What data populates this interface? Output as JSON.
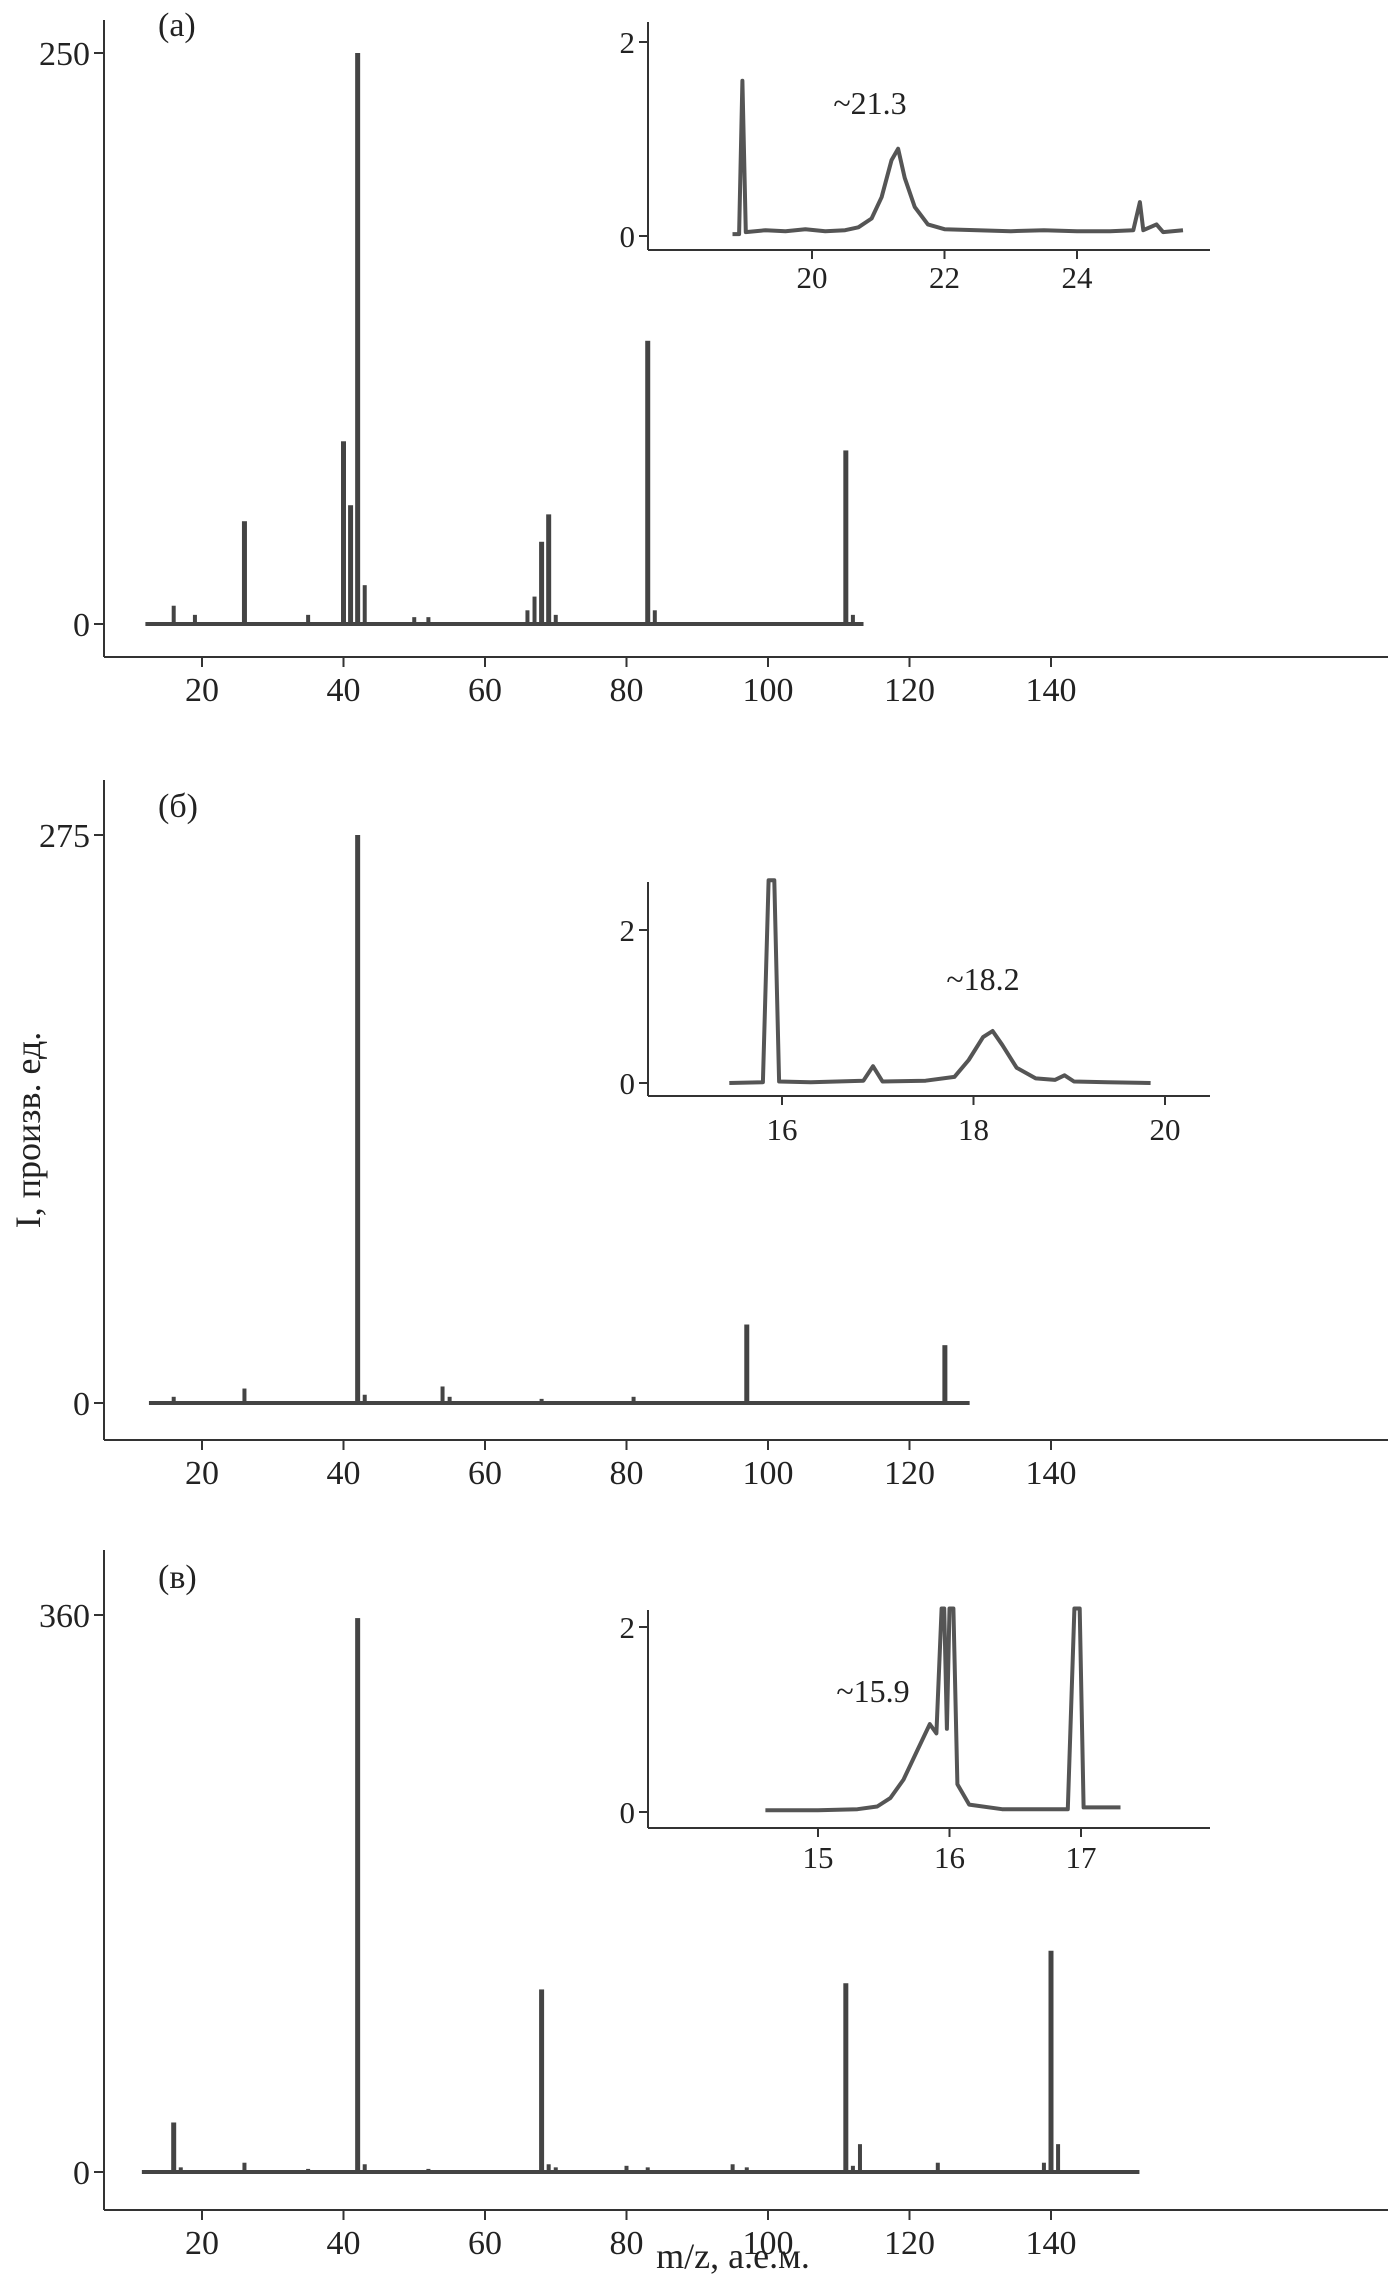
{
  "chart_data": {
    "type": "line",
    "xlabel": "m/z, а.е.м.",
    "ylabel": "I, произв. ед.",
    "panels": [
      {
        "label": "(а)",
        "x_range": [
          10,
          155
        ],
        "y_range": [
          0,
          250
        ],
        "x_ticks": [
          "20",
          "40",
          "60",
          "80",
          "100",
          "120",
          "140"
        ],
        "y_ticks": [
          "0",
          "250"
        ],
        "trace_x_range": [
          12.0,
          113.5
        ],
        "peaks": [
          {
            "mz": 16,
            "value": 8
          },
          {
            "mz": 19,
            "value": 4
          },
          {
            "mz": 26,
            "value": 45
          },
          {
            "mz": 35,
            "value": 4
          },
          {
            "mz": 40,
            "value": 80
          },
          {
            "mz": 41,
            "value": 52
          },
          {
            "mz": 42,
            "value": 250
          },
          {
            "mz": 43,
            "value": 17
          },
          {
            "mz": 50,
            "value": 3
          },
          {
            "mz": 52,
            "value": 3
          },
          {
            "mz": 66,
            "value": 6
          },
          {
            "mz": 67,
            "value": 12
          },
          {
            "mz": 68,
            "value": 36
          },
          {
            "mz": 69,
            "value": 48
          },
          {
            "mz": 70,
            "value": 4
          },
          {
            "mz": 83,
            "value": 124
          },
          {
            "mz": 84,
            "value": 6
          },
          {
            "mz": 111,
            "value": 76
          },
          {
            "mz": 112,
            "value": 4
          }
        ],
        "inset": {
          "x_range": [
            18.3,
            26.1
          ],
          "y_range": [
            -0.25,
            2.1
          ],
          "x_ticks": [
            "20",
            "22",
            "24"
          ],
          "y_ticks": [
            "0",
            "2"
          ],
          "annotation": "~21.3",
          "trace": [
            [
              18.8,
              0.02
            ],
            [
              18.9,
              0.02
            ],
            [
              18.95,
              1.6
            ],
            [
              19.0,
              0.04
            ],
            [
              19.3,
              0.06
            ],
            [
              19.6,
              0.05
            ],
            [
              19.9,
              0.07
            ],
            [
              20.2,
              0.05
            ],
            [
              20.5,
              0.06
            ],
            [
              20.7,
              0.09
            ],
            [
              20.9,
              0.18
            ],
            [
              21.05,
              0.4
            ],
            [
              21.2,
              0.78
            ],
            [
              21.3,
              0.9
            ],
            [
              21.4,
              0.6
            ],
            [
              21.55,
              0.3
            ],
            [
              21.75,
              0.12
            ],
            [
              22.0,
              0.07
            ],
            [
              22.5,
              0.06
            ],
            [
              23.0,
              0.05
            ],
            [
              23.5,
              0.06
            ],
            [
              24.0,
              0.05
            ],
            [
              24.5,
              0.05
            ],
            [
              24.85,
              0.06
            ],
            [
              24.95,
              0.35
            ],
            [
              25.0,
              0.06
            ],
            [
              25.2,
              0.12
            ],
            [
              25.3,
              0.04
            ],
            [
              25.6,
              0.06
            ]
          ]
        }
      },
      {
        "label": "(б)",
        "x_range": [
          10,
          155
        ],
        "y_range": [
          0,
          275
        ],
        "x_ticks": [
          "20",
          "40",
          "60",
          "80",
          "100",
          "120",
          "140"
        ],
        "y_ticks": [
          "0",
          "275"
        ],
        "trace_x_range": [
          12.5,
          128.5
        ],
        "peaks": [
          {
            "mz": 16,
            "value": 3
          },
          {
            "mz": 26,
            "value": 7
          },
          {
            "mz": 42,
            "value": 275
          },
          {
            "mz": 43,
            "value": 4
          },
          {
            "mz": 54,
            "value": 8
          },
          {
            "mz": 55,
            "value": 3
          },
          {
            "mz": 68,
            "value": 2
          },
          {
            "mz": 81,
            "value": 3
          },
          {
            "mz": 97,
            "value": 38
          },
          {
            "mz": 125,
            "value": 28
          }
        ],
        "inset": {
          "x_range": [
            15.3,
            20.5
          ],
          "y_range": [
            -0.3,
            2.65
          ],
          "x_ticks": [
            "16",
            "18",
            "20"
          ],
          "y_ticks": [
            "0",
            "2"
          ],
          "annotation": "~18.2",
          "trace": [
            [
              15.45,
              0.0
            ],
            [
              15.8,
              0.01
            ],
            [
              15.86,
              2.65
            ],
            [
              15.92,
              2.65
            ],
            [
              15.97,
              0.02
            ],
            [
              16.3,
              0.01
            ],
            [
              16.85,
              0.03
            ],
            [
              16.95,
              0.22
            ],
            [
              17.05,
              0.02
            ],
            [
              17.5,
              0.03
            ],
            [
              17.8,
              0.08
            ],
            [
              17.95,
              0.3
            ],
            [
              18.1,
              0.6
            ],
            [
              18.2,
              0.68
            ],
            [
              18.3,
              0.5
            ],
            [
              18.45,
              0.2
            ],
            [
              18.65,
              0.06
            ],
            [
              18.85,
              0.04
            ],
            [
              18.95,
              0.1
            ],
            [
              19.05,
              0.02
            ],
            [
              19.4,
              0.01
            ],
            [
              19.85,
              0.0
            ]
          ]
        }
      },
      {
        "label": "(в)",
        "x_range": [
          10,
          155
        ],
        "y_range": [
          0,
          360
        ],
        "x_ticks": [
          "20",
          "40",
          "60",
          "80",
          "100",
          "120",
          "140"
        ],
        "y_ticks": [
          "0",
          "360"
        ],
        "trace_x_range": [
          11.5,
          152.5
        ],
        "peaks": [
          {
            "mz": 16,
            "value": 32
          },
          {
            "mz": 17,
            "value": 3
          },
          {
            "mz": 26,
            "value": 6
          },
          {
            "mz": 35,
            "value": 2
          },
          {
            "mz": 42,
            "value": 358
          },
          {
            "mz": 43,
            "value": 5
          },
          {
            "mz": 52,
            "value": 2
          },
          {
            "mz": 68,
            "value": 118
          },
          {
            "mz": 69,
            "value": 5
          },
          {
            "mz": 70,
            "value": 3
          },
          {
            "mz": 80,
            "value": 4
          },
          {
            "mz": 83,
            "value": 3
          },
          {
            "mz": 95,
            "value": 5
          },
          {
            "mz": 97,
            "value": 3
          },
          {
            "mz": 111,
            "value": 122
          },
          {
            "mz": 112,
            "value": 4
          },
          {
            "mz": 113,
            "value": 18
          },
          {
            "mz": 124,
            "value": 6
          },
          {
            "mz": 139,
            "value": 6
          },
          {
            "mz": 140,
            "value": 143
          },
          {
            "mz": 141,
            "value": 18
          }
        ],
        "inset": {
          "x_range": [
            14.4,
            17.95
          ],
          "y_range": [
            -0.2,
            2.2
          ],
          "x_ticks": [
            "15",
            "16",
            "17"
          ],
          "y_ticks": [
            "0",
            "2"
          ],
          "annotation": "~15.9",
          "trace": [
            [
              14.6,
              0.02
            ],
            [
              15.0,
              0.02
            ],
            [
              15.3,
              0.03
            ],
            [
              15.45,
              0.06
            ],
            [
              15.55,
              0.15
            ],
            [
              15.65,
              0.35
            ],
            [
              15.75,
              0.65
            ],
            [
              15.85,
              0.95
            ],
            [
              15.9,
              0.85
            ],
            [
              15.94,
              2.2
            ],
            [
              15.96,
              2.2
            ],
            [
              15.98,
              0.9
            ],
            [
              16.0,
              2.2
            ],
            [
              16.03,
              2.2
            ],
            [
              16.06,
              0.3
            ],
            [
              16.15,
              0.08
            ],
            [
              16.4,
              0.03
            ],
            [
              16.9,
              0.03
            ],
            [
              16.95,
              2.2
            ],
            [
              16.99,
              2.2
            ],
            [
              17.02,
              0.05
            ],
            [
              17.3,
              0.05
            ]
          ]
        }
      }
    ]
  }
}
